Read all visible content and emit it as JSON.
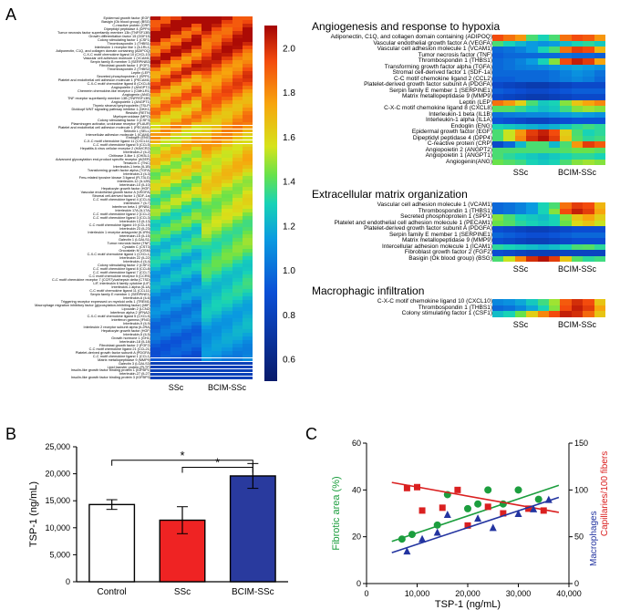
{
  "labels": {
    "A": "A",
    "B": "B",
    "C": "C",
    "ssc": "SSc",
    "bcim": "BCIM-SSc",
    "control": "Control"
  },
  "colorbar": {
    "min": 0.5,
    "max": 2.1,
    "ticks": [
      "0.6",
      "0.8",
      "1.0",
      "1.2",
      "1.4",
      "1.6",
      "1.8",
      "2.0"
    ],
    "stops": [
      {
        "v": 0,
        "c": "#081a6a"
      },
      {
        "v": 0.25,
        "c": "#0b4fd6"
      },
      {
        "v": 0.4,
        "c": "#0a9be0"
      },
      {
        "v": 0.5,
        "c": "#18d3b6"
      },
      {
        "v": 0.58,
        "c": "#68e24a"
      },
      {
        "v": 0.66,
        "c": "#d6e31a"
      },
      {
        "v": 0.78,
        "c": "#f7a50d"
      },
      {
        "v": 0.9,
        "c": "#f34b0d"
      },
      {
        "v": 1.0,
        "c": "#a40404"
      }
    ]
  },
  "panelA": {
    "genes": [
      "Epidermal growth factor (EGF)",
      "Basigin (Ok blood group) (BSG)",
      "C-reactive protein (CRP)",
      "Dipeptidyl peptidase 4 (DPP4)",
      "Tumor necrosis factor superfamily member 13b (TNFSF13B)",
      "Growth differentiation factor 15 (GDF15)",
      "Colony stimulating factor 1 (CSF1)",
      "Thrombospondin 1 (THBS1)",
      "Interleukin 1 receptor like 1 (IL1RL1)",
      "Adiponectin, C1Q, and collagen domain containing (ADIPOQ)",
      "C-X-C motif chemokine ligand 10 (CXCL10)",
      "Vascular cell adhesion molecule 1 (VCAM1)",
      "Serpin family B member 3 (SERPINB3)",
      "Fibroblast growth factor 1 (FGF1)",
      "Thrombospondin 2 (THBS2)",
      "Leptin (LEP)",
      "Secreted phosphoprotein 1 (SPP1)",
      "Platelet and endothelial cell adhesion molecule 1 (PECAM1)",
      "C-X-C motif chemokine ligand 8 (CXCL8)",
      "Angiopoietin 2 (ANGPT2)",
      "Chemerin chemokine-like receptor 1 (CMKLR1)",
      "Angiogenin (ANG)",
      "TNF receptor superfamily member 13B (TNFRSF13B)",
      "Angiopoietin 1 (ANGPT1)",
      "Thymic stromal lymphopoietin (TSLP)",
      "Dickkopf WNT signaling pathway inhibitor 1 (DKK1)",
      "Resistin (RETN)",
      "Myeloperoxidase (MPO)",
      "Colony stimulating factor 3 (CSF3)",
      "Plasminogen activator, urokinase receptor (PLAUR)",
      "Platelet and endothelial cell adhesion molecule 1 (PECAM1)",
      "Selectin L (SELL)",
      "Intercellular adhesion molecule 1 (ICAM1)",
      "Endoglin (ENG)",
      "C-X-C motif chemokine ligand 11 (CXCL11)",
      "C-C motif chemokine ligand 5 (CCL5)",
      "Hepatitis A virus cellular receptor 2 (HAVCR2)",
      "Interleukin-2 (IL2)",
      "Chitinase 3-like 1 (CHI3L1)",
      "Advanced glycosylation end-product specific receptor (AGER)",
      "Tenascin C (TNC)",
      "Interleukin-1 beta (IL1B)",
      "Transforming growth factor alpha (TGFA)",
      "Interleukin-3 (IL3)",
      "Fms-related tyrosine kinase 3 ligand (FLT3LG)",
      "Interleukin-12 (IL12B)",
      "Interleukin-10 (IL10)",
      "Hepatocyte growth factor (HGF)",
      "Vascular endothelial growth factor A (VEGFA)",
      "Stromal cell-derived factor 1 (SDF-1a)",
      "C-C motif chemokine ligand 4 (CCL4)",
      "Interleukin 7 (IL7)",
      "Interferon beta 1 (IFNB1)",
      "Interleukin 17A (IL17A)",
      "C-C motif chemokine ligand 2 (CCL2)",
      "C-C motif chemokine ligand 3 (CCL3)",
      "Interleukin 13 (IL13)",
      "C-C motif chemokine ligand 19 (CCL19)",
      "Interleukin 23 (IL23)",
      "Interleukin 1 receptor antagonist (IL1RN)",
      "Interleukin-15 (IL15)",
      "Galectin 1 (LGALS1)",
      "Tumor necrosis factor (TNF)",
      "Cystatin C (CST3)",
      "Oncostatin M (OSM)",
      "C-X-C motif chemokine ligand 1 (CXCL1)",
      "Interleukin 22 (IL22)",
      "Interleukin-4 (IL4)",
      "Colony stimulating factor 2 (CSF2)",
      "C-C motif chemokine ligand 8 (CCL8)",
      "C-C motif chemokine ligand 7 (CCL7)",
      "C-C motif chemokine receptor 5 (CCR5)",
      "C-C motif chemokine receptor 7 (CCR7)/cathepsin delta (CTSD)",
      "LIF, interleukin 6 family cytokine (LIF)",
      "Interleukin-1 alpha (IL1A)",
      "C-C motif chemokine ligand 11 (CCL11)",
      "Serpin family E member 1 (SERPINE1)",
      "Interleukin-6 (IL6)",
      "Triggering receptor expressed on myeloid cells 1 (TREM1)",
      "Macrophage migration inhibitory factor (glycosylation-inhibiting factor) (MIF)",
      "Lipocalin 2 (LCN2)",
      "Interferon alpha 2 (IFNA2)",
      "C-X-C motif chemokine ligand 5 (CXCL5)",
      "Interferon gamma (IFNG)",
      "Interleukin-9 (IL9)",
      "Interleukin 2 receptor subunit alpha (IL2RA)",
      "Hepatocyte growth factor (HGF)",
      "Interleukin-5 (IL5)",
      "Growth hormone 1 (GH1)",
      "Interleukin-18 (IL18)",
      "Fibroblast growth factor 2 (FGF2)",
      "C-C motif chemokine ligand 21 (CCL21)",
      "Platelet-derived growth factor subunit A (PDGFA)",
      "C-C motif chemokine ligand 1 (CCL1)",
      "Matrix metallopeptidase 9 (MMP9)",
      "Galectin 3 (LGALS3)",
      "Lipid transfer protein (PLTP)",
      "Insulin-like growth factor binding protein 1 (IGFBP1)",
      "Interleukin-27 (IL27)",
      "Insulin-like growth factor binding protein 3 (IGFBP3)"
    ],
    "rows": []
  },
  "sections": [
    {
      "title": "Angiogenesis and response to hypoxia",
      "genes": [
        "Adiponectin, C1Q, and collagen domain containing (ADIPOQ)",
        "Vascular endothelial growth factor A (VEGFA)",
        "Vascular cell adhesion molecule 1 (VCAM1)",
        "Tumor necrosis factor (TNF)",
        "Thrombospondin 1 (THBS1)",
        "Transforming growth factor alpha (TGFA)",
        "Stromal cell-derived factor 1 (SDF-1a)",
        "C-C motif chemokine ligand 2 (CCL2)",
        "Platelet-derived growth factor subunit A (PDGFA)",
        "Serpin family E member 1 (SERPINE1)",
        "Matrix metallopeptidase 9 (MMP9)",
        "Leptin (LEP)",
        "C-X-C motif chemokine ligand 8 (CXCL8)",
        "Interleukin-1 beta (IL1B)",
        "Interleukin-1 alpha (IL1A)",
        "Endoglin (ENG)",
        "Epidermal growth factor (EGF)",
        "Dipeptidyl peptidase 4 (DPP4)",
        "C-reactive protein (CRP)",
        "Angiopoietin 2 (ANGPT2)",
        "Angiopoietin 1 (ANGPT1)",
        "Angiogenin(ANG)"
      ],
      "rows": [
        [
          0.9,
          0.85,
          0.8,
          0.55,
          0.5,
          0.55,
          0.85,
          0.9,
          0.88,
          0.8
        ],
        [
          0.55,
          0.5,
          0.45,
          0.4,
          0.38,
          0.4,
          0.45,
          0.5,
          0.52,
          0.48
        ],
        [
          0.3,
          0.32,
          0.35,
          0.4,
          0.5,
          0.55,
          0.85,
          0.92,
          0.9,
          0.75
        ],
        [
          0.28,
          0.3,
          0.3,
          0.3,
          0.3,
          0.3,
          0.32,
          0.3,
          0.3,
          0.28
        ],
        [
          0.3,
          0.32,
          0.35,
          0.4,
          0.5,
          0.6,
          0.9,
          0.96,
          0.92,
          0.78
        ],
        [
          0.3,
          0.32,
          0.34,
          0.35,
          0.36,
          0.38,
          0.4,
          0.42,
          0.4,
          0.38
        ],
        [
          0.3,
          0.3,
          0.3,
          0.3,
          0.3,
          0.32,
          0.35,
          0.38,
          0.36,
          0.32
        ],
        [
          0.28,
          0.28,
          0.3,
          0.3,
          0.3,
          0.32,
          0.34,
          0.36,
          0.34,
          0.3
        ],
        [
          0.22,
          0.2,
          0.18,
          0.16,
          0.16,
          0.18,
          0.2,
          0.22,
          0.22,
          0.22
        ],
        [
          0.28,
          0.26,
          0.24,
          0.22,
          0.22,
          0.24,
          0.26,
          0.28,
          0.28,
          0.28
        ],
        [
          0.22,
          0.2,
          0.18,
          0.16,
          0.16,
          0.18,
          0.2,
          0.22,
          0.22,
          0.22
        ],
        [
          0.85,
          0.8,
          0.7,
          0.55,
          0.48,
          0.5,
          0.6,
          0.72,
          0.78,
          0.82
        ],
        [
          0.56,
          0.56,
          0.53,
          0.49,
          0.46,
          0.48,
          0.54,
          0.6,
          0.62,
          0.6
        ],
        [
          0.32,
          0.34,
          0.35,
          0.36,
          0.36,
          0.38,
          0.4,
          0.42,
          0.4,
          0.38
        ],
        [
          0.26,
          0.24,
          0.22,
          0.2,
          0.2,
          0.22,
          0.24,
          0.26,
          0.26,
          0.26
        ],
        [
          0.5,
          0.48,
          0.46,
          0.44,
          0.42,
          0.44,
          0.48,
          0.52,
          0.54,
          0.52
        ],
        [
          0.55,
          0.65,
          0.8,
          0.92,
          0.96,
          0.9,
          0.7,
          0.55,
          0.5,
          0.52
        ],
        [
          0.55,
          0.65,
          0.82,
          0.94,
          0.98,
          0.92,
          0.72,
          0.56,
          0.52,
          0.54
        ],
        [
          0.22,
          0.3,
          0.45,
          0.55,
          0.55,
          0.45,
          0.55,
          0.8,
          0.92,
          0.88
        ],
        [
          0.55,
          0.55,
          0.55,
          0.55,
          0.55,
          0.55,
          0.56,
          0.58,
          0.58,
          0.56
        ],
        [
          0.55,
          0.52,
          0.5,
          0.48,
          0.46,
          0.48,
          0.5,
          0.52,
          0.52,
          0.5
        ],
        [
          0.58,
          0.56,
          0.54,
          0.5,
          0.48,
          0.5,
          0.55,
          0.6,
          0.62,
          0.6
        ]
      ]
    },
    {
      "title": "Extracellular matrix organization",
      "genes": [
        "Vascular cell adhesion molecule 1 (VCAM1)",
        "Thrombospondin 1 (THBS1)",
        "Secreted phosphoprotein 1 (SPP1)",
        "Platelet and endothelial cell adhesion molecule 1 (PECAM1)",
        "Platelet-derived growth factor subunit A (PDGFA)",
        "Serpin family E member 1 (SERPINE1)",
        "Matrix metallopeptidase 9 (MMP9)",
        "Intercellular adhesion molecule 1 (ICAM1)",
        "Fibroblast growth factor 2 (FGF2)",
        "Basigin (Ok blood group) (BSG)"
      ],
      "rows": [
        [
          0.3,
          0.32,
          0.35,
          0.4,
          0.5,
          0.55,
          0.85,
          0.92,
          0.9,
          0.75
        ],
        [
          0.3,
          0.32,
          0.35,
          0.4,
          0.5,
          0.6,
          0.9,
          0.96,
          0.92,
          0.78
        ],
        [
          0.6,
          0.55,
          0.5,
          0.48,
          0.46,
          0.5,
          0.6,
          0.72,
          0.78,
          0.7
        ],
        [
          0.58,
          0.56,
          0.52,
          0.5,
          0.48,
          0.5,
          0.58,
          0.68,
          0.72,
          0.65
        ],
        [
          0.24,
          0.22,
          0.2,
          0.18,
          0.18,
          0.2,
          0.22,
          0.24,
          0.24,
          0.24
        ],
        [
          0.3,
          0.28,
          0.26,
          0.24,
          0.24,
          0.26,
          0.28,
          0.3,
          0.3,
          0.3
        ],
        [
          0.24,
          0.22,
          0.2,
          0.18,
          0.18,
          0.2,
          0.22,
          0.24,
          0.24,
          0.24
        ],
        [
          0.52,
          0.5,
          0.48,
          0.46,
          0.44,
          0.46,
          0.5,
          0.55,
          0.56,
          0.52
        ],
        [
          0.24,
          0.22,
          0.2,
          0.18,
          0.18,
          0.18,
          0.2,
          0.2,
          0.2,
          0.2
        ],
        [
          0.55,
          0.65,
          0.82,
          0.94,
          0.98,
          0.92,
          0.72,
          0.56,
          0.52,
          0.54
        ]
      ]
    },
    {
      "title": "Macrophagic infiltration",
      "genes": [
        "C-X-C motif chemokine ligand 10 (CXCL10)",
        "Thrombospondin 1 (THBS1)",
        "Colony stimulating factor 1 (CSF1)"
      ],
      "rows": [
        [
          0.36,
          0.38,
          0.42,
          0.48,
          0.54,
          0.62,
          0.88,
          0.94,
          0.9,
          0.72
        ],
        [
          0.3,
          0.32,
          0.36,
          0.42,
          0.5,
          0.6,
          0.9,
          0.96,
          0.92,
          0.78
        ],
        [
          0.46,
          0.5,
          0.58,
          0.7,
          0.82,
          0.9,
          0.96,
          0.94,
          0.86,
          0.72
        ]
      ]
    }
  ],
  "panelB": {
    "ylabel": "TSP-1 (ng/mL)",
    "ylim": [
      0,
      25000
    ],
    "yticks": [
      0,
      5000,
      10000,
      15000,
      20000,
      25000
    ],
    "yticklabels": [
      "0",
      "5,000",
      "10,000",
      "15,000",
      "20,000",
      "25,000"
    ],
    "bars": [
      {
        "label": "Control",
        "mean": 14300,
        "err": 900,
        "fill": "#ffffff",
        "stroke": "#000"
      },
      {
        "label": "SSc",
        "mean": 11400,
        "err": 2500,
        "fill": "#ef2323",
        "stroke": "#000"
      },
      {
        "label": "BCIM-SSc",
        "mean": 19600,
        "err": 2300,
        "fill": "#293a9e",
        "stroke": "#000"
      }
    ],
    "sig": [
      {
        "from": 0,
        "to": 2,
        "y": 22500,
        "label": "*"
      },
      {
        "from": 1,
        "to": 2,
        "y": 21200,
        "label": "*"
      }
    ],
    "tick_fontsize": 9,
    "label_fontsize": 11
  },
  "panelC": {
    "xlabel": "TSP-1 (ng/mL)",
    "ylabel_left": "Fibrotic area (%)",
    "ylabel_left_color": "#1c9e3e",
    "ylabel_right_top": "Capillaries/100 fibers",
    "ylabel_right_top_color": "#da2020",
    "ylabel_right_bottom": "Macrophages",
    "ylabel_right_bottom_color": "#2334a0",
    "xlim": [
      0,
      40000
    ],
    "xticks": [
      0,
      10000,
      20000,
      30000,
      40000
    ],
    "xticklabels": [
      "0",
      "10,000",
      "20,000",
      "30,000",
      "40,000"
    ],
    "ylim_left": [
      0,
      60
    ],
    "yticks_left": [
      0,
      20,
      40,
      60
    ],
    "ylim_right": [
      0,
      150
    ],
    "yticks_right": [
      0,
      50,
      100,
      150
    ],
    "series": {
      "fibrotic": {
        "color": "#1c9e3e",
        "marker": "circle",
        "line": {
          "x0": 5000,
          "y0": 18,
          "x1": 38000,
          "y1": 42
        },
        "points": [
          [
            7000,
            19
          ],
          [
            9000,
            21
          ],
          [
            14000,
            25
          ],
          [
            16000,
            38
          ],
          [
            20000,
            32
          ],
          [
            22000,
            34
          ],
          [
            24000,
            40
          ],
          [
            27000,
            34
          ],
          [
            30000,
            40
          ],
          [
            34000,
            36
          ]
        ]
      },
      "capillaries": {
        "color": "#da2020",
        "marker": "square",
        "line": {
          "x0": 5000,
          "y0": 108,
          "x1": 38000,
          "y1": 76
        },
        "points": [
          [
            8000,
            102
          ],
          [
            10000,
            103
          ],
          [
            11000,
            78
          ],
          [
            15000,
            81
          ],
          [
            18000,
            100
          ],
          [
            20000,
            62
          ],
          [
            24000,
            82
          ],
          [
            27000,
            75
          ],
          [
            32000,
            80
          ],
          [
            35000,
            78
          ]
        ]
      },
      "macrophages": {
        "color": "#2334a0",
        "marker": "triangle",
        "line": {
          "x0": 5000,
          "y0": 33,
          "x1": 38000,
          "y1": 92
        },
        "points": [
          [
            8000,
            35
          ],
          [
            11000,
            48
          ],
          [
            14000,
            55
          ],
          [
            16000,
            74
          ],
          [
            22000,
            70
          ],
          [
            25000,
            60
          ],
          [
            30000,
            75
          ],
          [
            33000,
            80
          ],
          [
            36000,
            90
          ]
        ]
      }
    },
    "tick_fontsize": 9,
    "label_fontsize": 11
  }
}
